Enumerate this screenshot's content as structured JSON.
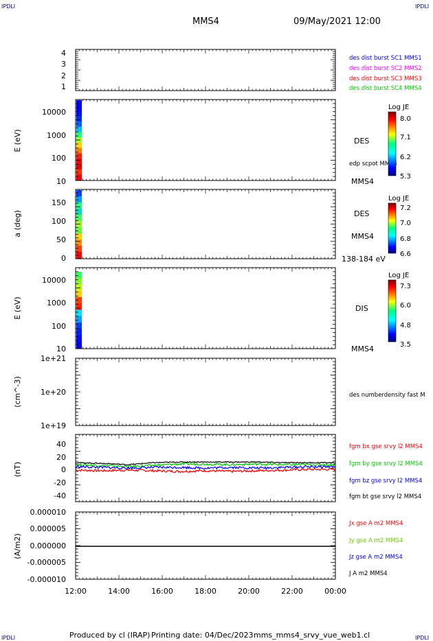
{
  "header": {
    "title": "MMS4",
    "date": "09/May/2021 12:00",
    "corner_label": "IPDLI"
  },
  "footer": {
    "produced_by": "Produced by cl (IRAP)",
    "printing_date": "Printing date: 04/Dec/2023",
    "filename": "mms_mms4_srvy_vue_web1.cl"
  },
  "colors": {
    "blue": "#0000ff",
    "magenta": "#ff00ff",
    "red": "#ff0000",
    "green": "#00cc00",
    "black": "#000000"
  },
  "chart_data": [
    {
      "type": "line",
      "panel": "spacecraft-ids",
      "ylabel": "",
      "yticks": [
        "1",
        "2",
        "3",
        "4"
      ],
      "ylim": [
        0.6,
        4.4
      ],
      "legend": [
        {
          "name": "des dist burst SC1 MMS1",
          "color": "#0000ff"
        },
        {
          "name": "des dist burst SC2 MMS2",
          "color": "#ff00ff"
        },
        {
          "name": "des dist burst SC3 MMS3",
          "color": "#ff0000"
        },
        {
          "name": "des dist burst SC4 MMS4",
          "color": "#00cc00"
        }
      ]
    },
    {
      "type": "heatmap",
      "panel": "des-energy",
      "ylabel": "E (eV)",
      "yscale": "log",
      "ylim": [
        10,
        30000
      ],
      "yticks": [
        "10",
        "100",
        "1000",
        "10000"
      ],
      "side_labels": [
        "DES",
        "edp scpot MMS4",
        "MMS4"
      ],
      "colorbar": {
        "title": "Log JE",
        "ticks": [
          "8.0",
          "7.1",
          "6.2",
          "5.3"
        ],
        "range": [
          5.3,
          8.0
        ]
      },
      "data_interval": [
        "12:00",
        "12:11"
      ]
    },
    {
      "type": "heatmap",
      "panel": "des-pitch-angle",
      "ylabel": "a (deg)",
      "ylim": [
        0,
        180
      ],
      "yticks": [
        "0",
        "50",
        "100",
        "150"
      ],
      "side_labels": [
        "DES",
        "MMS4",
        "138-184 eV"
      ],
      "colorbar": {
        "title": "Log JE",
        "ticks": [
          "7.2",
          "7.0",
          "6.8",
          "6.6"
        ],
        "range": [
          6.6,
          7.3
        ]
      },
      "data_interval": [
        "12:00",
        "12:11"
      ]
    },
    {
      "type": "heatmap",
      "panel": "dis-energy",
      "ylabel": "E (eV)",
      "yscale": "log",
      "ylim": [
        10,
        30000
      ],
      "yticks": [
        "10",
        "100",
        "1000",
        "10000"
      ],
      "side_labels": [
        "DIS",
        "MMS4"
      ],
      "colorbar": {
        "title": "Log JE",
        "ticks": [
          "7.3",
          "6.0",
          "4.8",
          "3.5"
        ],
        "range": [
          3.5,
          7.3
        ]
      },
      "data_interval": [
        "12:00",
        "12:11"
      ]
    },
    {
      "type": "line",
      "panel": "density",
      "ylabel": "(cm^-3)",
      "yscale": "log",
      "yticks": [
        "1e+19",
        "1e+20",
        "1e+21"
      ],
      "legend": [
        {
          "name": "des numberdensity fast M",
          "color": "#000000"
        }
      ]
    },
    {
      "type": "line",
      "panel": "magnetic-field",
      "ylabel": "(nT)",
      "ylim": [
        -50,
        50
      ],
      "yticks": [
        "-40",
        "-20",
        "0",
        "20",
        "40"
      ],
      "x": [
        "12:00",
        "14:00",
        "16:00",
        "16:30",
        "18:00",
        "19:00",
        "20:00",
        "21:00",
        "22:00",
        "23:30",
        "00:00"
      ],
      "series": [
        {
          "name": "fgm bx gse srvy l2 MMS4",
          "color": "#ff0000",
          "values": [
            -3,
            -4,
            -3,
            -4,
            -5,
            -4,
            -5,
            -4,
            -3,
            -2,
            -2
          ]
        },
        {
          "name": "fgm by gse srvy l2 MMS4",
          "color": "#00cc00",
          "values": [
            5,
            4,
            2,
            4,
            6,
            6,
            5,
            6,
            5,
            5,
            5
          ]
        },
        {
          "name": "fgm bz gse srvy l2 MMS4",
          "color": "#0000ff",
          "values": [
            2,
            1,
            0,
            1,
            1,
            0,
            1,
            0,
            1,
            2,
            2
          ]
        },
        {
          "name": "fgm bt gse srvy l2 MMS4",
          "color": "#000000",
          "values": [
            8,
            7,
            5,
            8,
            9,
            9,
            9,
            9,
            8,
            8,
            8
          ]
        }
      ]
    },
    {
      "type": "line",
      "panel": "current-density",
      "ylabel": "(A/m2)",
      "ylim": [
        -1e-05,
        1e-05
      ],
      "yticks": [
        "-0.000010",
        "-0.000005",
        "0.000000",
        "0.000005",
        "0.000010"
      ],
      "x": [
        "12:00",
        "00:00"
      ],
      "series": [
        {
          "name": "Jx gse A m2 MMS4",
          "color": "#ff0000",
          "values": [
            0,
            0
          ]
        },
        {
          "name": "Jy gse A m2 MMS4",
          "color": "#66cc00",
          "values": [
            0,
            0
          ]
        },
        {
          "name": "Jz gse A m2 MMS4",
          "color": "#0000ff",
          "values": [
            0,
            0
          ]
        },
        {
          "name": "J A m2 MMS4",
          "color": "#000000",
          "values": [
            0,
            0
          ]
        }
      ]
    }
  ],
  "xaxis": {
    "ticks": [
      "12:00",
      "14:00",
      "16:00",
      "18:00",
      "20:00",
      "22:00",
      "00:00"
    ]
  }
}
